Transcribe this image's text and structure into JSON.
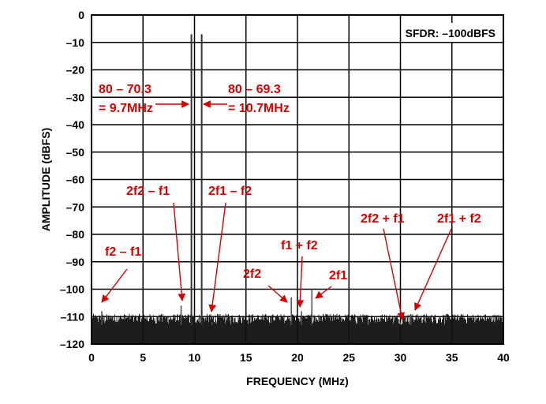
{
  "chart_data": {
    "type": "line",
    "xlabel": "FREQUENCY (MHz)",
    "ylabel": "AMPLITUDE (dBFS)",
    "xlim": [
      0,
      40
    ],
    "ylim": [
      -120,
      0
    ],
    "xticks": [
      0,
      5,
      10,
      15,
      20,
      25,
      30,
      35,
      40
    ],
    "yticks": [
      0,
      -10,
      -20,
      -30,
      -40,
      -50,
      -60,
      -70,
      -80,
      -90,
      -100,
      -110,
      -120
    ],
    "grid": true,
    "inset_label": "SFDR: –100dBFS",
    "noise_floor_dbfs": -113,
    "peaks": [
      {
        "x": 1.0,
        "y": -108
      },
      {
        "x": 8.7,
        "y": -106
      },
      {
        "x": 9.7,
        "y": -7
      },
      {
        "x": 10.7,
        "y": -7
      },
      {
        "x": 11.7,
        "y": -112
      },
      {
        "x": 19.4,
        "y": -103
      },
      {
        "x": 20.4,
        "y": -108
      },
      {
        "x": 21.4,
        "y": -100
      },
      {
        "x": 30.0,
        "y": -112
      },
      {
        "x": 31.0,
        "y": -109
      }
    ],
    "annotations": [
      {
        "lines": [
          "80 – 70.3",
          "= 9.7MHz"
        ],
        "target": [
          9.7,
          -32
        ]
      },
      {
        "lines": [
          "80 – 69.3",
          "= 10.7MHz"
        ],
        "target": [
          10.7,
          -32
        ]
      },
      {
        "lines": [
          "2f2 – f1"
        ],
        "target": [
          8.7,
          -106
        ]
      },
      {
        "lines": [
          "2f1 – f2"
        ],
        "target": [
          11.7,
          -112
        ]
      },
      {
        "lines": [
          "f2 – f1"
        ],
        "target": [
          1.0,
          -108
        ]
      },
      {
        "lines": [
          "f1 + f2"
        ],
        "target": [
          20.4,
          -108
        ]
      },
      {
        "lines": [
          "2f2"
        ],
        "target": [
          19.4,
          -104
        ]
      },
      {
        "lines": [
          "2f1"
        ],
        "target": [
          21.4,
          -104
        ]
      },
      {
        "lines": [
          "2f2 + f1"
        ],
        "target": [
          30.0,
          -112
        ]
      },
      {
        "lines": [
          "2f1 + f2"
        ],
        "target": [
          31.0,
          -110
        ]
      }
    ],
    "colors": {
      "trace": "#111111",
      "grid": "#000000",
      "annotation": "#d40000",
      "text": "#000000"
    }
  }
}
